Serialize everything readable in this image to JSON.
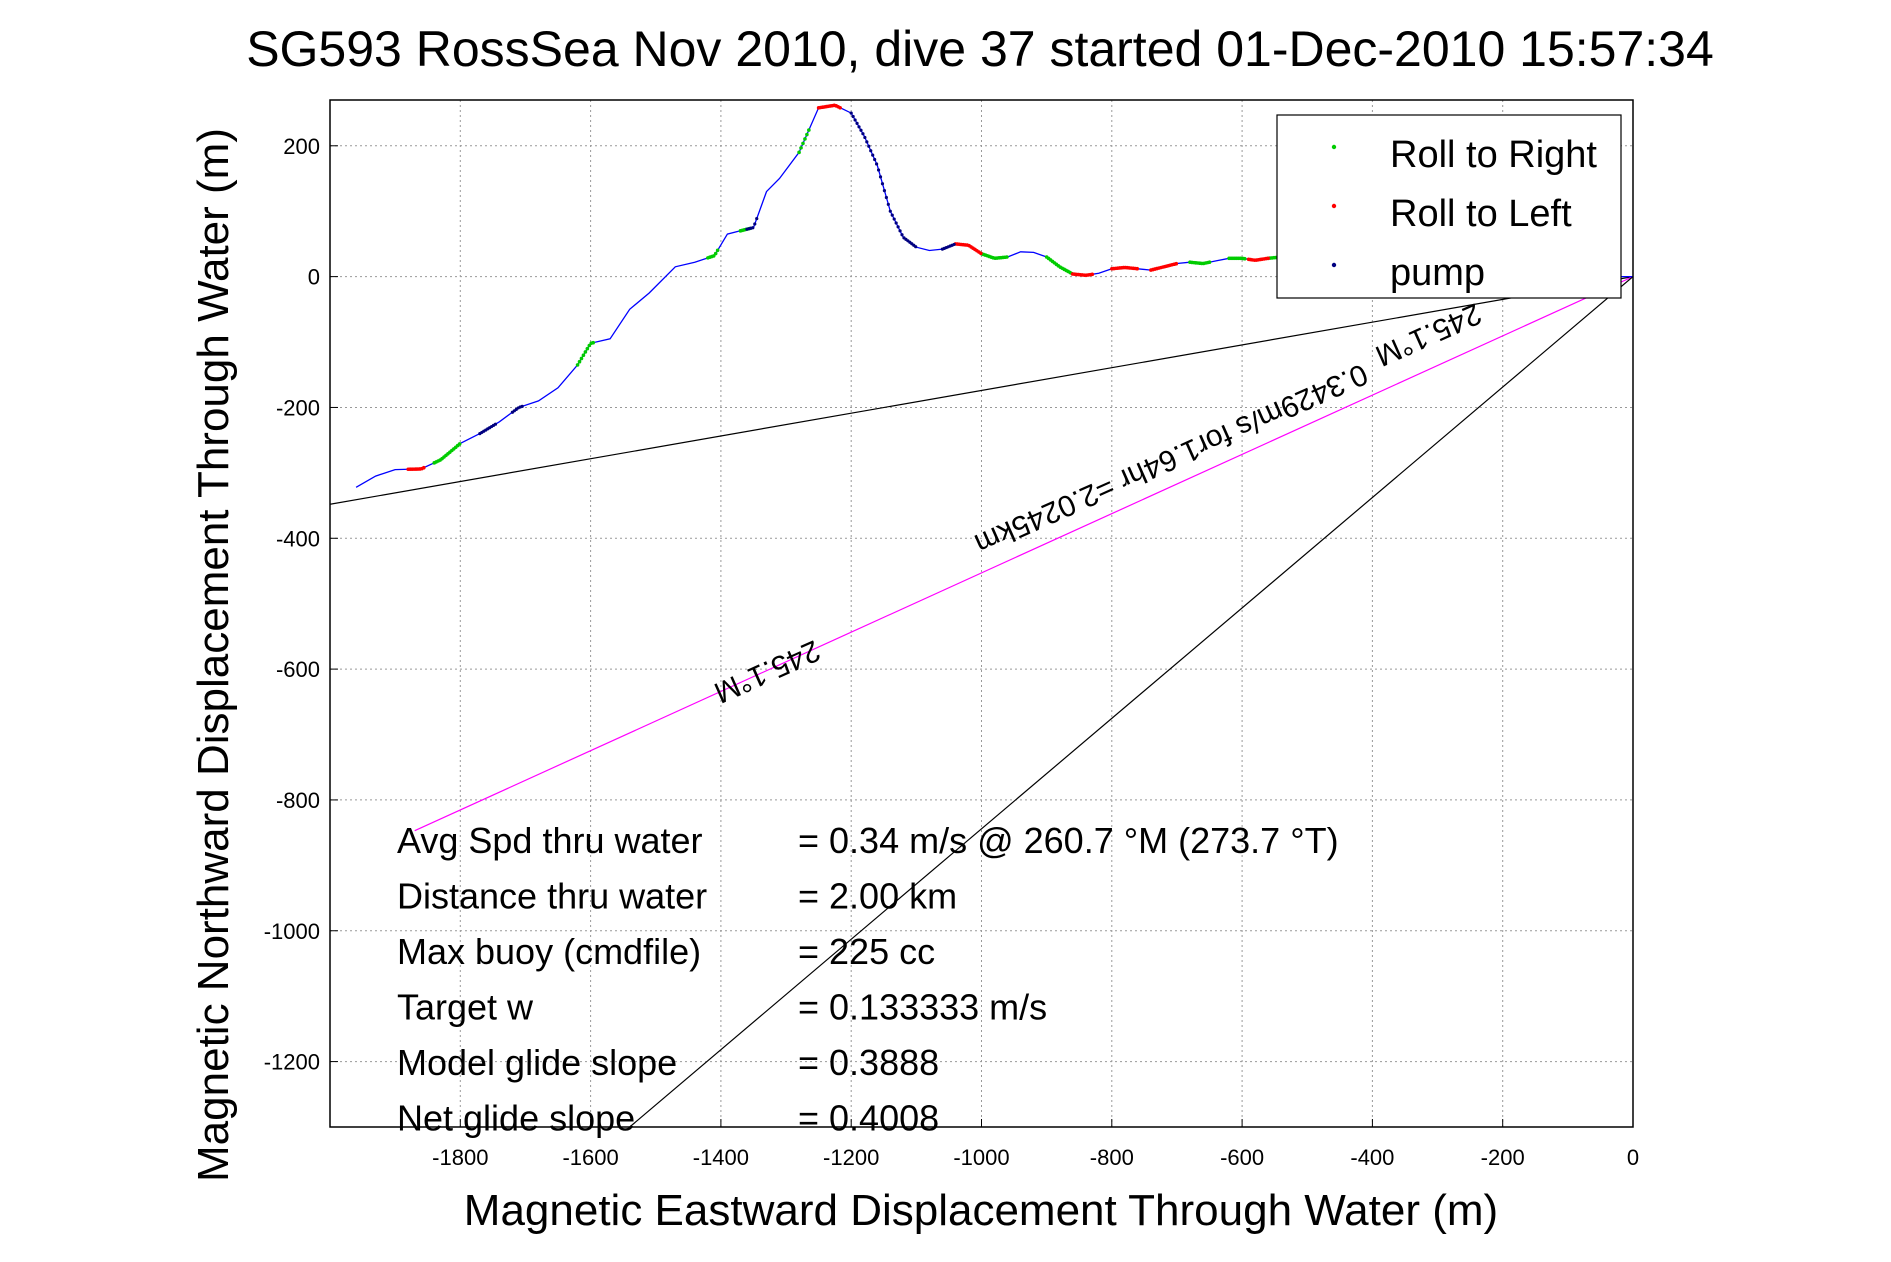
{
  "chart_data": {
    "type": "line",
    "title": "SG593 RossSea Nov 2010, dive 37 started 01-Dec-2010 15:57:34",
    "xlabel": "Magnetic Eastward Displacement Through Water (m)",
    "ylabel": "Magnetic Northward Displacement Through Water (m)",
    "xlim": [
      -2000,
      0
    ],
    "ylim": [
      -1300,
      270
    ],
    "xticks": [
      "-1800",
      "-1600",
      "-1400",
      "-1200",
      "-1000",
      "-800",
      "-600",
      "-400",
      "-200",
      "0"
    ],
    "xtick_values": [
      -1800,
      -1600,
      -1400,
      -1200,
      -1000,
      -800,
      -600,
      -400,
      -200,
      0
    ],
    "yticks": [
      "200",
      "0",
      "-200",
      "-400",
      "-600",
      "-800",
      "-1000",
      "-1200"
    ],
    "ytick_values": [
      200,
      0,
      -200,
      -400,
      -600,
      -800,
      -1000,
      -1200
    ],
    "grid": true,
    "legend_position": "top-right",
    "legend": [
      {
        "label": "Roll to Right",
        "color": "#00cc00"
      },
      {
        "label": "Roll to Left",
        "color": "#ff0000"
      },
      {
        "label": "pump",
        "color": "#000080"
      }
    ],
    "track": {
      "color": "#0000ff",
      "x": [
        -1960,
        -1930,
        -1900,
        -1860,
        -1830,
        -1800,
        -1770,
        -1740,
        -1710,
        -1680,
        -1650,
        -1620,
        -1600,
        -1570,
        -1540,
        -1510,
        -1470,
        -1440,
        -1410,
        -1390,
        -1370,
        -1350,
        -1330,
        -1310,
        -1280,
        -1250,
        -1225,
        -1200,
        -1180,
        -1160,
        -1140,
        -1120,
        -1100,
        -1080,
        -1060,
        -1040,
        -1020,
        -1000,
        -980,
        -960,
        -940,
        -920,
        -900,
        -880,
        -860,
        -840,
        -820,
        -800,
        -780,
        -760,
        -740,
        -720,
        -700,
        -680,
        -660,
        -640,
        -620,
        -600,
        -580,
        -560,
        -540,
        -520,
        -500,
        -480,
        -460,
        -440,
        -420,
        -400,
        -380,
        -360,
        -340,
        -320,
        -300,
        -280,
        -260,
        -240,
        -220,
        -200,
        -180,
        -160,
        -140,
        -120,
        -100,
        -80,
        -60,
        -40,
        -20,
        0
      ],
      "y": [
        -322,
        -305,
        -295,
        -294,
        -280,
        -255,
        -240,
        -222,
        -200,
        -190,
        -170,
        -135,
        -102,
        -95,
        -50,
        -25,
        15,
        22,
        32,
        65,
        70,
        75,
        130,
        150,
        190,
        258,
        262,
        250,
        215,
        170,
        100,
        60,
        45,
        40,
        42,
        50,
        48,
        35,
        28,
        30,
        38,
        37,
        30,
        15,
        4,
        2,
        5,
        12,
        14,
        12,
        10,
        15,
        20,
        22,
        20,
        24,
        28,
        28,
        25,
        28,
        30,
        30,
        25,
        27,
        30,
        26,
        20,
        15,
        12,
        10,
        8,
        10,
        12,
        12,
        10,
        8,
        8,
        10,
        8,
        6,
        5,
        3,
        2,
        2,
        1,
        1,
        0,
        0
      ]
    },
    "roll_right_segments": [
      [
        -1840,
        -1800
      ],
      [
        -1620,
        -1595
      ],
      [
        -1420,
        -1405
      ],
      [
        -1370,
        -1355
      ],
      [
        -1280,
        -1265
      ],
      [
        -1000,
        -960
      ],
      [
        -900,
        -860
      ],
      [
        -680,
        -650
      ],
      [
        -620,
        -595
      ],
      [
        -560,
        -530
      ],
      [
        -460,
        -430
      ],
      [
        -300,
        -270
      ]
    ],
    "roll_left_segments": [
      [
        -1880,
        -1855
      ],
      [
        -1250,
        -1215
      ],
      [
        -1040,
        -1000
      ],
      [
        -860,
        -830
      ],
      [
        -800,
        -760
      ],
      [
        -740,
        -700
      ],
      [
        -590,
        -560
      ],
      [
        -520,
        -470
      ],
      [
        -420,
        -380
      ],
      [
        -340,
        -310
      ],
      [
        -250,
        -210
      ],
      [
        -180,
        -150
      ]
    ],
    "pump_segments": [
      [
        -1770,
        -1745
      ],
      [
        -1720,
        -1705
      ],
      [
        -1360,
        -1345
      ],
      [
        -1200,
        -1100
      ],
      [
        -1060,
        -1040
      ]
    ],
    "reference_lines": [
      {
        "color": "#000000",
        "points": [
          [
            0,
            0
          ],
          [
            -2000,
            -348
          ]
        ]
      },
      {
        "color": "#ff00ff",
        "points": [
          [
            0,
            0
          ],
          [
            -1870,
            -847
          ]
        ]
      },
      {
        "color": "#000000",
        "points": [
          [
            0,
            0
          ],
          [
            -1540,
            -1300
          ]
        ]
      }
    ],
    "line_annotations": [
      {
        "text": "245.1°M",
        "x": -1335,
        "y": -590,
        "rotate_deg": 156
      },
      {
        "text": "0.3429m/s for1.64hr =2.0245km",
        "x": -715,
        "y": -265,
        "rotate_deg": 156
      },
      {
        "text": "245.1°M",
        "x": -320,
        "y": -75,
        "rotate_deg": 156
      }
    ],
    "stats": [
      {
        "label": "Avg Spd thru water",
        "value": "=  0.34 m/s @ 260.7 °M (273.7 °T)"
      },
      {
        "label": "Distance thru water",
        "value": "=  2.00 km"
      },
      {
        "label": "Max buoy (cmdfile)",
        "value": "= 225 cc"
      },
      {
        "label": "Target w",
        "value": "= 0.133333 m/s"
      },
      {
        "label": "Model glide slope",
        "value": "= 0.3888"
      },
      {
        "label": "Net glide slope",
        "value": "= 0.4008"
      }
    ]
  }
}
